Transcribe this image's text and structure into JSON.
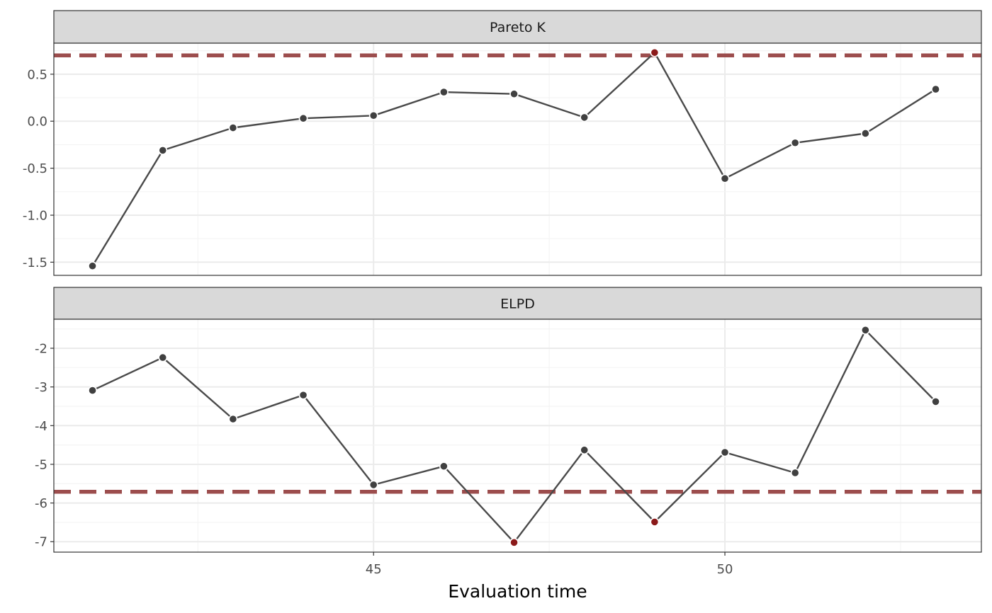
{
  "chart_data": {
    "type": "line",
    "xlabel": "Evaluation time",
    "x_ticks": [
      45,
      50
    ],
    "x_range": [
      40.45,
      53.65
    ],
    "grid": true,
    "colors": {
      "line": "#4a4a4a",
      "point": "#404040",
      "highlight_point": "#8b1a1a",
      "reference_line": "#9c4d4d",
      "strip_fill": "#d9d9d9",
      "grid_major": "#ebebeb",
      "grid_minor": "#f4f4f4",
      "panel_border": "#333333"
    },
    "panels": [
      {
        "title": "Pareto K",
        "x": [
          41,
          42,
          43,
          44,
          45,
          46,
          47,
          48,
          49,
          50,
          51,
          52,
          53
        ],
        "y": [
          -1.54,
          -0.31,
          -0.07,
          0.03,
          0.06,
          0.31,
          0.29,
          0.04,
          0.73,
          -0.61,
          -0.23,
          -0.13,
          0.34
        ],
        "highlighted_x": [
          49
        ],
        "reference_y": 0.7,
        "y_ticks": [
          -1.5,
          -1.0,
          -0.5,
          0.0,
          0.5
        ],
        "y_tick_labels": [
          "-1.5",
          "-1.0",
          "-0.5",
          "0.0",
          "0.5"
        ],
        "ylim": [
          -1.64,
          0.83
        ]
      },
      {
        "title": "ELPD",
        "x": [
          41,
          42,
          43,
          44,
          45,
          46,
          47,
          48,
          49,
          50,
          51,
          52,
          53
        ],
        "y": [
          -3.09,
          -2.24,
          -3.83,
          -3.21,
          -5.53,
          -5.05,
          -7.02,
          -4.63,
          -6.49,
          -4.69,
          -5.22,
          -1.53,
          -3.38
        ],
        "highlighted_x": [
          47,
          49
        ],
        "reference_y": -5.71,
        "y_ticks": [
          -7,
          -6,
          -5,
          -4,
          -3,
          -2
        ],
        "y_tick_labels": [
          "-7",
          "-6",
          "-5",
          "-4",
          "-3",
          "-2"
        ],
        "ylim": [
          -7.27,
          -1.25
        ]
      }
    ]
  }
}
